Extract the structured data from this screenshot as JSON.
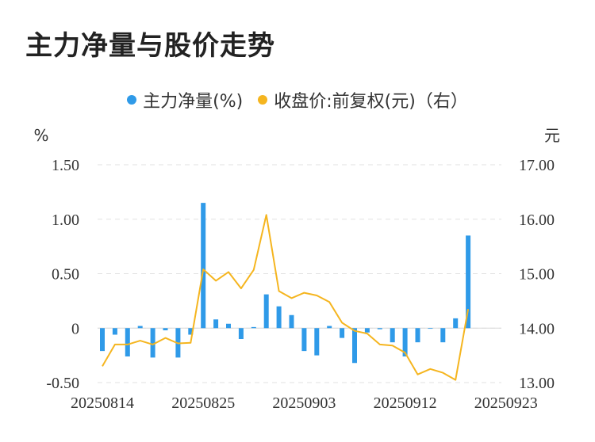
{
  "title": "主力净量与股价走势",
  "legend": {
    "net_label": "主力净量(%)",
    "price_label": "收盘价:前复权(元)（右）",
    "net_color": "#2f9ae8",
    "price_color": "#f5b51f"
  },
  "chart_data": {
    "type": "bar+line",
    "left_unit": "%",
    "right_unit": "元",
    "left_ticks": [
      "1.50",
      "1.00",
      "0.50",
      "0",
      "-0.50"
    ],
    "right_ticks": [
      "17.00",
      "16.00",
      "15.00",
      "14.00",
      "13.00"
    ],
    "left_range": [
      -0.5,
      1.5
    ],
    "right_range": [
      13.0,
      17.0
    ],
    "x_tick_labels": [
      "20250814",
      "20250825",
      "20250903",
      "20250912",
      "20250923"
    ],
    "x_tick_indices": [
      0,
      8,
      16,
      24,
      32
    ],
    "grid": true,
    "series": [
      {
        "name": "主力净量(%)",
        "type": "bar",
        "axis": "left",
        "values": [
          -0.21,
          -0.06,
          -0.26,
          0.02,
          -0.27,
          -0.02,
          -0.27,
          -0.06,
          1.15,
          0.08,
          0.04,
          -0.1,
          0.01,
          0.31,
          0.2,
          0.12,
          -0.21,
          -0.25,
          0.02,
          -0.09,
          -0.32,
          -0.04,
          -0.01,
          -0.13,
          -0.26,
          -0.13,
          0.0,
          -0.13,
          0.09,
          0.85
        ]
      },
      {
        "name": "收盘价:前复权(元)（右）",
        "type": "line",
        "axis": "right",
        "values": [
          13.3,
          13.7,
          13.7,
          13.77,
          13.7,
          13.82,
          13.72,
          13.73,
          15.08,
          14.87,
          15.03,
          14.73,
          15.07,
          16.08,
          14.68,
          14.55,
          14.65,
          14.6,
          14.48,
          14.1,
          13.95,
          13.9,
          13.7,
          13.68,
          13.55,
          13.15,
          13.25,
          13.18,
          13.05,
          14.35
        ]
      }
    ]
  }
}
